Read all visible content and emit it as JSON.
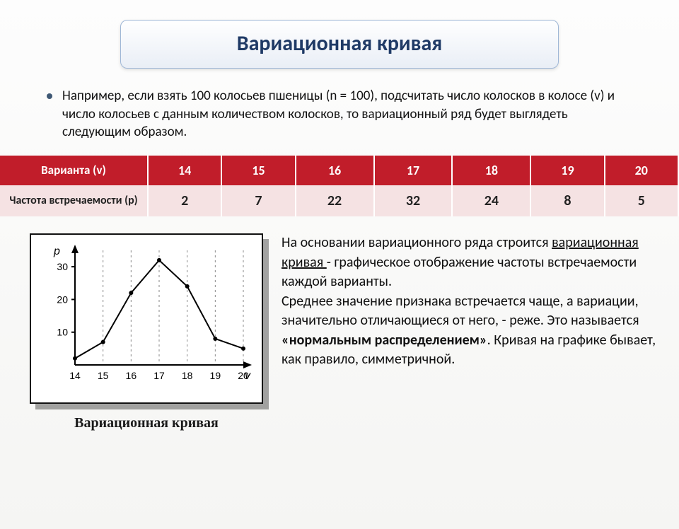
{
  "title": "Вариационная кривая",
  "bullet": "Например, если взять 100 колосьев пшеницы (n = 100), подсчитать число колосков в колосе (v) и число колосьев с данным количеством колосков, то вариационный ряд будет выглядеть следующим образом.",
  "table": {
    "row1_label": "Варианта (v)",
    "row2_label": "Частота встречаемости (p)",
    "variants": [
      "14",
      "15",
      "16",
      "17",
      "18",
      "19",
      "20"
    ],
    "freq": [
      "2",
      "7",
      "22",
      "32",
      "24",
      "8",
      "5"
    ],
    "header_bg": "#c11d2a",
    "header_fg": "#ffffff",
    "body_bg": "#f5e2e3",
    "body_fg": "#222222"
  },
  "chart": {
    "type": "line",
    "caption": "Вариационная кривая",
    "x_label": "v",
    "y_label": "p",
    "x_values": [
      14,
      15,
      16,
      17,
      18,
      19,
      20
    ],
    "y_values": [
      2,
      7,
      22,
      32,
      24,
      8,
      5
    ],
    "xlim": [
      14,
      20
    ],
    "ylim": [
      0,
      35
    ],
    "yticks": [
      10,
      20,
      30
    ],
    "xticks": [
      14,
      15,
      16,
      17,
      18,
      19,
      20
    ],
    "line_color": "#000000",
    "line_width": 2,
    "marker_size": 3,
    "grid_dash": "3,4",
    "grid_color": "#888888",
    "axis_color": "#000000",
    "bg": "#ffffff",
    "tick_font_size": 14,
    "axis_label_font_size": 16,
    "axis_label_style": "italic"
  },
  "desc": {
    "p1a": "На основании вариационного ряда строится ",
    "p1b": "вариационная кривая ",
    "p1c": "- графическое отображение частоты встречаемости каждой варианты.",
    "p2a": "Среднее значение признака встречается чаще, а вариации, значительно отличающиеся от него, - реже. Это называется ",
    "p2b": "«нормальным распределением»",
    "p2c": ". Кривая на графике бывает, как правило, симметричной."
  }
}
